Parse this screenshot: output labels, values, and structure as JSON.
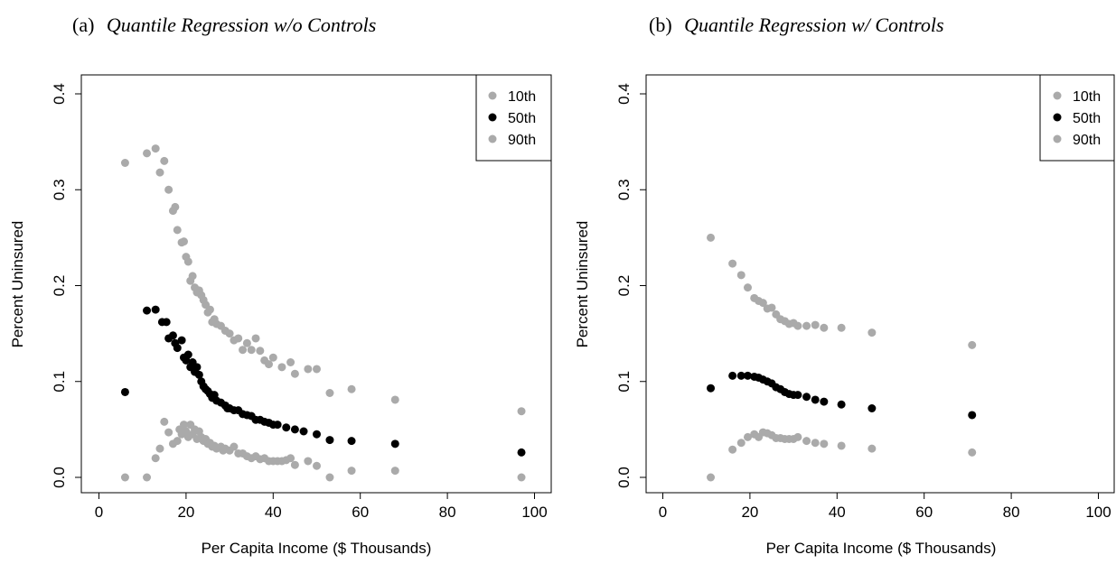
{
  "chart_data": [
    {
      "type": "scatter",
      "caption_prefix": "(a)",
      "title": "Quantile Regression w/o Controls",
      "xlabel": "Per Capita Income ($ Thousands)",
      "ylabel": "Percent Uninsured",
      "xlim": [
        0,
        100
      ],
      "ylim": [
        0,
        0.4
      ],
      "xticks": [
        0,
        20,
        40,
        60,
        80,
        100
      ],
      "yticks": [
        0.0,
        0.1,
        0.2,
        0.3,
        0.4
      ],
      "ytick_labels": [
        "0.0",
        "0.1",
        "0.2",
        "0.3",
        "0.4"
      ],
      "grid": false,
      "legend_position": "top-right",
      "series": [
        {
          "name": "10th",
          "color": "#aaaaaa",
          "points": [
            [
              6,
              0.0
            ],
            [
              11,
              0.0
            ],
            [
              13,
              0.02
            ],
            [
              14,
              0.03
            ],
            [
              15,
              0.058
            ],
            [
              16,
              0.047
            ],
            [
              17,
              0.035
            ],
            [
              18,
              0.038
            ],
            [
              18.5,
              0.05
            ],
            [
              19,
              0.045
            ],
            [
              19.5,
              0.055
            ],
            [
              20,
              0.048
            ],
            [
              20.5,
              0.042
            ],
            [
              21,
              0.055
            ],
            [
              21.5,
              0.045
            ],
            [
              22,
              0.05
            ],
            [
              22.5,
              0.04
            ],
            [
              23,
              0.048
            ],
            [
              23.5,
              0.042
            ],
            [
              24,
              0.038
            ],
            [
              24.5,
              0.04
            ],
            [
              25,
              0.035
            ],
            [
              25.5,
              0.036
            ],
            [
              26,
              0.032
            ],
            [
              26.5,
              0.033
            ],
            [
              27,
              0.03
            ],
            [
              28,
              0.032
            ],
            [
              28.5,
              0.028
            ],
            [
              29,
              0.03
            ],
            [
              30,
              0.028
            ],
            [
              31,
              0.032
            ],
            [
              32,
              0.025
            ],
            [
              33,
              0.025
            ],
            [
              34,
              0.022
            ],
            [
              35,
              0.02
            ],
            [
              36,
              0.022
            ],
            [
              37,
              0.019
            ],
            [
              38,
              0.02
            ],
            [
              39,
              0.017
            ],
            [
              40,
              0.017
            ],
            [
              41,
              0.017
            ],
            [
              42,
              0.017
            ],
            [
              43,
              0.018
            ],
            [
              44,
              0.02
            ],
            [
              45,
              0.013
            ],
            [
              48,
              0.017
            ],
            [
              50,
              0.012
            ],
            [
              53,
              0.0
            ],
            [
              58,
              0.007
            ],
            [
              68,
              0.007
            ],
            [
              97,
              0.0
            ]
          ]
        },
        {
          "name": "50th",
          "color": "#000000",
          "points": [
            [
              6,
              0.089
            ],
            [
              11,
              0.174
            ],
            [
              13,
              0.175
            ],
            [
              14.5,
              0.162
            ],
            [
              15.5,
              0.162
            ],
            [
              16,
              0.145
            ],
            [
              17,
              0.148
            ],
            [
              17.5,
              0.14
            ],
            [
              18,
              0.135
            ],
            [
              19,
              0.143
            ],
            [
              19.5,
              0.125
            ],
            [
              20,
              0.122
            ],
            [
              20.5,
              0.128
            ],
            [
              21,
              0.115
            ],
            [
              21.5,
              0.12
            ],
            [
              22,
              0.11
            ],
            [
              22.5,
              0.115
            ],
            [
              23,
              0.107
            ],
            [
              23.5,
              0.1
            ],
            [
              24,
              0.095
            ],
            [
              24.5,
              0.092
            ],
            [
              25,
              0.09
            ],
            [
              25.5,
              0.087
            ],
            [
              26,
              0.083
            ],
            [
              26.5,
              0.086
            ],
            [
              27,
              0.08
            ],
            [
              28,
              0.078
            ],
            [
              29,
              0.075
            ],
            [
              29.5,
              0.072
            ],
            [
              30,
              0.072
            ],
            [
              31,
              0.07
            ],
            [
              32,
              0.07
            ],
            [
              33,
              0.066
            ],
            [
              34,
              0.065
            ],
            [
              35,
              0.064
            ],
            [
              36,
              0.06
            ],
            [
              37,
              0.06
            ],
            [
              38,
              0.058
            ],
            [
              39,
              0.057
            ],
            [
              40,
              0.055
            ],
            [
              41,
              0.055
            ],
            [
              43,
              0.052
            ],
            [
              45,
              0.05
            ],
            [
              47,
              0.048
            ],
            [
              50,
              0.045
            ],
            [
              53,
              0.039
            ],
            [
              58,
              0.038
            ],
            [
              68,
              0.035
            ],
            [
              97,
              0.026
            ]
          ]
        },
        {
          "name": "90th",
          "color": "#aaaaaa",
          "points": [
            [
              6,
              0.328
            ],
            [
              11,
              0.338
            ],
            [
              13,
              0.343
            ],
            [
              14,
              0.318
            ],
            [
              15,
              0.33
            ],
            [
              16,
              0.3
            ],
            [
              17,
              0.278
            ],
            [
              17.5,
              0.282
            ],
            [
              18,
              0.258
            ],
            [
              19,
              0.245
            ],
            [
              19.5,
              0.246
            ],
            [
              20,
              0.23
            ],
            [
              20.5,
              0.225
            ],
            [
              21,
              0.205
            ],
            [
              21.5,
              0.21
            ],
            [
              22,
              0.198
            ],
            [
              22.5,
              0.193
            ],
            [
              23,
              0.195
            ],
            [
              23.5,
              0.19
            ],
            [
              24,
              0.185
            ],
            [
              24.5,
              0.18
            ],
            [
              25,
              0.172
            ],
            [
              25.5,
              0.175
            ],
            [
              26,
              0.162
            ],
            [
              26.5,
              0.165
            ],
            [
              27,
              0.16
            ],
            [
              28,
              0.158
            ],
            [
              29,
              0.153
            ],
            [
              30,
              0.15
            ],
            [
              31,
              0.143
            ],
            [
              32,
              0.145
            ],
            [
              33,
              0.133
            ],
            [
              34,
              0.14
            ],
            [
              35,
              0.133
            ],
            [
              36,
              0.145
            ],
            [
              37,
              0.132
            ],
            [
              38,
              0.122
            ],
            [
              39,
              0.118
            ],
            [
              40,
              0.125
            ],
            [
              42,
              0.115
            ],
            [
              44,
              0.12
            ],
            [
              45,
              0.108
            ],
            [
              48,
              0.113
            ],
            [
              50,
              0.113
            ],
            [
              53,
              0.088
            ],
            [
              58,
              0.092
            ],
            [
              68,
              0.081
            ],
            [
              97,
              0.069
            ]
          ]
        }
      ]
    },
    {
      "type": "scatter",
      "caption_prefix": "(b)",
      "title": "Quantile Regression w/ Controls",
      "xlabel": "Per Capita Income ($ Thousands)",
      "ylabel": "Percent Uninsured",
      "xlim": [
        0,
        100
      ],
      "ylim": [
        0,
        0.4
      ],
      "xticks": [
        0,
        20,
        40,
        60,
        80,
        100
      ],
      "yticks": [
        0.0,
        0.1,
        0.2,
        0.3,
        0.4
      ],
      "ytick_labels": [
        "0.0",
        "0.1",
        "0.2",
        "0.3",
        "0.4"
      ],
      "grid": false,
      "legend_position": "top-right",
      "series": [
        {
          "name": "10th",
          "color": "#aaaaaa",
          "points": [
            [
              11,
              0.0
            ],
            [
              16,
              0.029
            ],
            [
              18,
              0.036
            ],
            [
              19.5,
              0.042
            ],
            [
              21,
              0.045
            ],
            [
              22,
              0.042
            ],
            [
              23,
              0.047
            ],
            [
              24,
              0.046
            ],
            [
              25,
              0.044
            ],
            [
              26,
              0.041
            ],
            [
              27,
              0.041
            ],
            [
              28,
              0.04
            ],
            [
              29,
              0.04
            ],
            [
              30,
              0.04
            ],
            [
              31,
              0.042
            ],
            [
              33,
              0.038
            ],
            [
              35,
              0.036
            ],
            [
              37,
              0.035
            ],
            [
              41,
              0.033
            ],
            [
              48,
              0.03
            ],
            [
              71,
              0.026
            ]
          ]
        },
        {
          "name": "50th",
          "color": "#000000",
          "points": [
            [
              11,
              0.093
            ],
            [
              16,
              0.106
            ],
            [
              18,
              0.106
            ],
            [
              19.5,
              0.106
            ],
            [
              21,
              0.105
            ],
            [
              22,
              0.104
            ],
            [
              23,
              0.102
            ],
            [
              24,
              0.1
            ],
            [
              25,
              0.098
            ],
            [
              26,
              0.094
            ],
            [
              27,
              0.092
            ],
            [
              28,
              0.089
            ],
            [
              29,
              0.087
            ],
            [
              30,
              0.086
            ],
            [
              31,
              0.086
            ],
            [
              33,
              0.084
            ],
            [
              35,
              0.081
            ],
            [
              37,
              0.079
            ],
            [
              41,
              0.076
            ],
            [
              48,
              0.072
            ],
            [
              71,
              0.065
            ]
          ]
        },
        {
          "name": "90th",
          "color": "#aaaaaa",
          "points": [
            [
              11,
              0.25
            ],
            [
              16,
              0.223
            ],
            [
              18,
              0.211
            ],
            [
              19.5,
              0.198
            ],
            [
              21,
              0.187
            ],
            [
              22,
              0.184
            ],
            [
              23,
              0.182
            ],
            [
              24,
              0.176
            ],
            [
              25,
              0.177
            ],
            [
              26,
              0.17
            ],
            [
              27,
              0.165
            ],
            [
              28,
              0.163
            ],
            [
              29,
              0.16
            ],
            [
              30,
              0.161
            ],
            [
              31,
              0.158
            ],
            [
              33,
              0.158
            ],
            [
              35,
              0.159
            ],
            [
              37,
              0.156
            ],
            [
              41,
              0.156
            ],
            [
              48,
              0.151
            ],
            [
              71,
              0.138
            ]
          ]
        }
      ]
    }
  ]
}
